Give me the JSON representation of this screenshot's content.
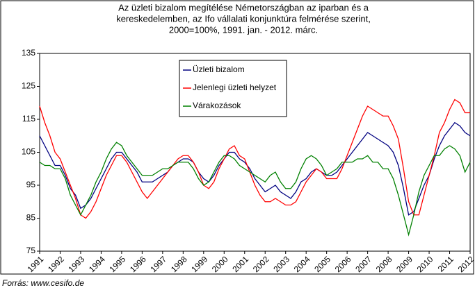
{
  "chart_data": {
    "type": "line",
    "title": [
      "Az üzleti bizalom megítélése Németországban az iparban és a",
      "kereskedelemben, az Ifo vállalati konjunktúra felmérése szerint,",
      "2000=100%, 1991. jan. - 2012. márc."
    ],
    "source": "Forrás: www.cesifo.de",
    "categories": [
      "1991",
      null,
      null,
      null,
      "1992",
      null,
      null,
      null,
      "1993",
      null,
      null,
      null,
      "1994",
      null,
      null,
      null,
      "1995",
      null,
      null,
      null,
      "1996",
      null,
      null,
      null,
      "1997",
      null,
      null,
      null,
      "1998",
      null,
      null,
      null,
      "1999",
      null,
      null,
      null,
      "2000",
      null,
      null,
      null,
      "2001",
      null,
      null,
      null,
      "2002",
      null,
      null,
      null,
      "2003",
      null,
      null,
      null,
      "2004",
      null,
      null,
      null,
      "2005",
      null,
      null,
      null,
      "2006",
      null,
      null,
      null,
      "2007",
      null,
      null,
      null,
      "2008",
      null,
      null,
      null,
      "2009",
      null,
      null,
      null,
      "2010",
      null,
      null,
      null,
      "2011",
      null,
      null,
      null,
      "2012"
    ],
    "ylim": [
      75,
      135
    ],
    "yticks": [
      75,
      85,
      95,
      105,
      115,
      125,
      135
    ],
    "grid": false,
    "legend": "upper center",
    "series": [
      {
        "name": "Üzleti bizalom",
        "color": "#000080",
        "values": [
          110,
          107,
          104,
          101,
          101,
          98,
          94,
          92,
          88,
          89,
          91,
          94,
          97,
          100,
          103,
          105,
          105,
          103,
          101,
          99,
          96,
          96,
          96,
          97,
          98,
          99,
          101,
          102,
          103,
          103,
          102,
          99,
          97,
          96,
          98,
          101,
          103,
          105,
          105,
          103,
          102,
          100,
          97,
          95,
          93,
          94,
          95,
          93,
          92,
          91,
          93,
          96,
          97,
          99,
          100,
          99,
          98,
          98,
          99,
          101,
          103,
          105,
          107,
          109,
          111,
          110,
          109,
          108,
          107,
          105,
          101,
          94,
          86,
          87,
          91,
          95,
          98,
          103,
          107,
          110,
          112,
          114,
          113,
          111,
          110
        ]
      },
      {
        "name": "Jelenlegi üzleti helyzet",
        "color": "#ff0000",
        "values": [
          119,
          114,
          110,
          105,
          103,
          99,
          95,
          91,
          86,
          85,
          87,
          90,
          94,
          98,
          101,
          104,
          104,
          102,
          99,
          96,
          93,
          91,
          93,
          95,
          97,
          99,
          101,
          103,
          104,
          104,
          102,
          99,
          95,
          94,
          96,
          100,
          103,
          106,
          107,
          104,
          103,
          99,
          95,
          92,
          90,
          90,
          91,
          90,
          89,
          89,
          90,
          93,
          96,
          98,
          100,
          99,
          97,
          97,
          97,
          100,
          104,
          108,
          112,
          116,
          119,
          118,
          117,
          116,
          116,
          113,
          109,
          100,
          90,
          86,
          86,
          92,
          98,
          104,
          111,
          114,
          118,
          121,
          120,
          117,
          117
        ]
      },
      {
        "name": "Várakozások",
        "color": "#008000",
        "values": [
          102,
          101,
          101,
          100,
          100,
          97,
          92,
          89,
          86,
          89,
          92,
          96,
          99,
          103,
          106,
          108,
          107,
          104,
          102,
          100,
          98,
          98,
          98,
          99,
          100,
          100,
          101,
          102,
          102,
          102,
          100,
          97,
          95,
          96,
          99,
          102,
          104,
          104,
          103,
          101,
          100,
          99,
          98,
          97,
          96,
          98,
          99,
          96,
          94,
          94,
          96,
          100,
          103,
          104,
          103,
          101,
          98,
          99,
          100,
          102,
          102,
          102,
          103,
          103,
          104,
          102,
          102,
          100,
          100,
          97,
          92,
          86,
          80,
          86,
          93,
          98,
          101,
          104,
          104,
          106,
          107,
          106,
          104,
          99,
          102
        ]
      }
    ]
  }
}
